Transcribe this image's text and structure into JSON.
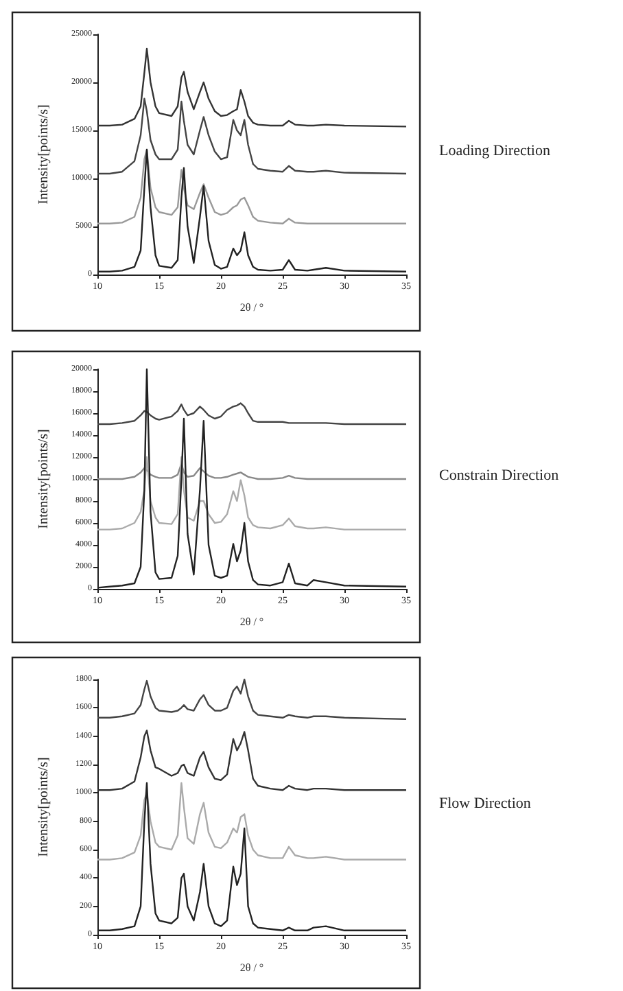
{
  "chart_data": [
    {
      "type": "line",
      "annotations": [
        "Loading Direction"
      ],
      "xlabel": "2θ / °",
      "ylabel": "Intensity[points/s]",
      "xlim": [
        10,
        35
      ],
      "xticks": [
        10,
        15,
        20,
        25,
        30,
        35
      ],
      "ylim": [
        0,
        25000
      ],
      "yticks": [
        0,
        5000,
        10000,
        15000,
        20000,
        25000
      ],
      "x": [
        10,
        11,
        12,
        13,
        13.5,
        13.8,
        14,
        14.3,
        14.7,
        15,
        16,
        16.5,
        16.8,
        17,
        17.3,
        17.8,
        18.3,
        18.6,
        19,
        19.5,
        20,
        20.5,
        21,
        21.3,
        21.6,
        21.9,
        22.2,
        22.6,
        23,
        24,
        25,
        25.5,
        26,
        27,
        27.5,
        28.5,
        30,
        35
      ],
      "series": [
        {
          "color": "#333333",
          "values": [
            15500,
            15500,
            15600,
            16200,
            17500,
            21000,
            23500,
            20000,
            17500,
            16800,
            16500,
            17500,
            20500,
            21100,
            19000,
            17200,
            19000,
            20000,
            18300,
            17000,
            16500,
            16600,
            17000,
            17200,
            19200,
            18000,
            16500,
            15800,
            15600,
            15500,
            15500,
            16000,
            15600,
            15500,
            15500,
            15600,
            15500,
            15400
          ]
        },
        {
          "color": "#444444",
          "values": [
            10500,
            10500,
            10700,
            11800,
            14500,
            18300,
            17000,
            14000,
            12500,
            12000,
            12000,
            13000,
            18000,
            16000,
            13500,
            12500,
            15000,
            16400,
            14500,
            12800,
            12000,
            12200,
            16100,
            15000,
            14500,
            16100,
            13500,
            11500,
            11000,
            10800,
            10700,
            11300,
            10800,
            10700,
            10700,
            10800,
            10600,
            10500
          ]
        },
        {
          "color": "#999999",
          "values": [
            5300,
            5300,
            5400,
            6000,
            8000,
            12000,
            13000,
            9000,
            7000,
            6500,
            6200,
            7000,
            10900,
            9000,
            7200,
            6800,
            8500,
            9400,
            8000,
            6500,
            6200,
            6400,
            7000,
            7200,
            7800,
            8000,
            7200,
            6000,
            5600,
            5400,
            5300,
            5800,
            5400,
            5300,
            5300,
            5300,
            5300,
            5300
          ]
        },
        {
          "color": "#222222",
          "values": [
            300,
            300,
            400,
            800,
            2500,
            9000,
            13000,
            7000,
            2000,
            900,
            700,
            1500,
            8000,
            11100,
            5000,
            1200,
            6000,
            9200,
            3500,
            1000,
            600,
            800,
            2700,
            2000,
            2500,
            4400,
            2000,
            800,
            500,
            400,
            500,
            1500,
            500,
            400,
            500,
            700,
            400,
            300
          ]
        }
      ]
    },
    {
      "type": "line",
      "annotations": [
        "Constrain Direction"
      ],
      "xlabel": "2θ / °",
      "ylabel": "Intensity[points/s]",
      "xlim": [
        10,
        35
      ],
      "xticks": [
        10,
        15,
        20,
        25,
        30,
        35
      ],
      "ylim": [
        0,
        20000
      ],
      "yticks": [
        0,
        2000,
        4000,
        6000,
        8000,
        10000,
        12000,
        14000,
        16000,
        18000,
        20000
      ],
      "x": [
        10,
        11,
        12,
        13,
        13.5,
        13.8,
        14,
        14.3,
        14.7,
        15,
        16,
        16.5,
        16.8,
        17,
        17.3,
        17.8,
        18.3,
        18.6,
        19,
        19.5,
        20,
        20.5,
        21,
        21.3,
        21.6,
        21.9,
        22.2,
        22.6,
        23,
        24,
        25,
        25.5,
        26,
        27,
        27.5,
        28.5,
        30,
        35
      ],
      "series": [
        {
          "color": "#444444",
          "values": [
            15000,
            15000,
            15100,
            15300,
            15800,
            16200,
            16100,
            15800,
            15500,
            15400,
            15700,
            16200,
            16800,
            16300,
            15800,
            16000,
            16600,
            16300,
            15800,
            15500,
            15700,
            16300,
            16600,
            16700,
            16900,
            16600,
            16000,
            15300,
            15200,
            15200,
            15200,
            15100,
            15100,
            15100,
            15100,
            15100,
            15000,
            15000
          ]
        },
        {
          "color": "#888888",
          "values": [
            10000,
            10000,
            10000,
            10200,
            10600,
            11000,
            10800,
            10400,
            10200,
            10100,
            10100,
            10400,
            11400,
            10600,
            10200,
            10300,
            11000,
            10700,
            10300,
            10100,
            10100,
            10200,
            10400,
            10500,
            10600,
            10400,
            10200,
            10100,
            10000,
            10000,
            10100,
            10300,
            10100,
            10000,
            10000,
            10000,
            10000,
            10000
          ]
        },
        {
          "color": "#aaaaaa",
          "values": [
            5400,
            5400,
            5500,
            6000,
            7000,
            9000,
            12000,
            8000,
            6500,
            6000,
            5900,
            6800,
            12000,
            9000,
            6500,
            6200,
            8000,
            8000,
            6800,
            6000,
            6100,
            6800,
            8900,
            8000,
            9900,
            8500,
            6500,
            5800,
            5600,
            5500,
            5800,
            6400,
            5700,
            5500,
            5500,
            5600,
            5400,
            5400
          ]
        },
        {
          "color": "#222222",
          "values": [
            100,
            200,
            300,
            500,
            2000,
            9000,
            20000,
            7000,
            1500,
            900,
            1000,
            3000,
            10000,
            15500,
            5000,
            1300,
            9000,
            15300,
            4000,
            1200,
            1000,
            1200,
            4100,
            2500,
            3500,
            6000,
            2500,
            800,
            400,
            300,
            600,
            2300,
            500,
            300,
            800,
            600,
            300,
            200
          ]
        }
      ]
    },
    {
      "type": "line",
      "annotations": [
        "Flow Direction"
      ],
      "xlabel": "2θ / °",
      "ylabel": "Intensity[points/s]",
      "xlim": [
        10,
        35
      ],
      "xticks": [
        10,
        15,
        20,
        25,
        30,
        35
      ],
      "ylim": [
        0,
        1800
      ],
      "yticks": [
        0,
        200,
        400,
        600,
        800,
        1000,
        1200,
        1400,
        1600,
        1800
      ],
      "x": [
        10,
        11,
        12,
        13,
        13.5,
        13.8,
        14,
        14.3,
        14.7,
        15,
        16,
        16.5,
        16.8,
        17,
        17.3,
        17.8,
        18.3,
        18.6,
        19,
        19.5,
        20,
        20.5,
        21,
        21.3,
        21.6,
        21.9,
        22.2,
        22.6,
        23,
        24,
        25,
        25.5,
        26,
        27,
        27.5,
        28.5,
        30,
        35
      ],
      "series": [
        {
          "color": "#444444",
          "values": [
            1530,
            1530,
            1540,
            1560,
            1620,
            1730,
            1790,
            1680,
            1600,
            1580,
            1570,
            1580,
            1600,
            1620,
            1590,
            1580,
            1660,
            1690,
            1620,
            1580,
            1580,
            1600,
            1720,
            1750,
            1700,
            1800,
            1680,
            1580,
            1550,
            1540,
            1530,
            1550,
            1540,
            1530,
            1540,
            1540,
            1530,
            1520
          ]
        },
        {
          "color": "#333333",
          "values": [
            1020,
            1020,
            1030,
            1080,
            1250,
            1400,
            1440,
            1300,
            1180,
            1170,
            1120,
            1140,
            1190,
            1200,
            1140,
            1120,
            1250,
            1290,
            1180,
            1100,
            1090,
            1130,
            1380,
            1300,
            1350,
            1430,
            1300,
            1100,
            1050,
            1030,
            1020,
            1050,
            1030,
            1020,
            1030,
            1030,
            1020,
            1020
          ]
        },
        {
          "color": "#aaaaaa",
          "values": [
            530,
            530,
            540,
            580,
            700,
            950,
            1000,
            800,
            650,
            620,
            600,
            700,
            1070,
            900,
            680,
            640,
            850,
            930,
            720,
            620,
            610,
            650,
            750,
            720,
            830,
            850,
            700,
            600,
            560,
            540,
            540,
            620,
            560,
            540,
            540,
            550,
            530,
            530
          ]
        },
        {
          "color": "#222222",
          "values": [
            30,
            30,
            40,
            60,
            200,
            800,
            1070,
            500,
            150,
            100,
            80,
            120,
            400,
            430,
            200,
            100,
            300,
            500,
            200,
            80,
            60,
            100,
            480,
            350,
            430,
            750,
            200,
            80,
            50,
            40,
            30,
            50,
            30,
            30,
            50,
            60,
            30,
            30
          ]
        }
      ]
    }
  ]
}
